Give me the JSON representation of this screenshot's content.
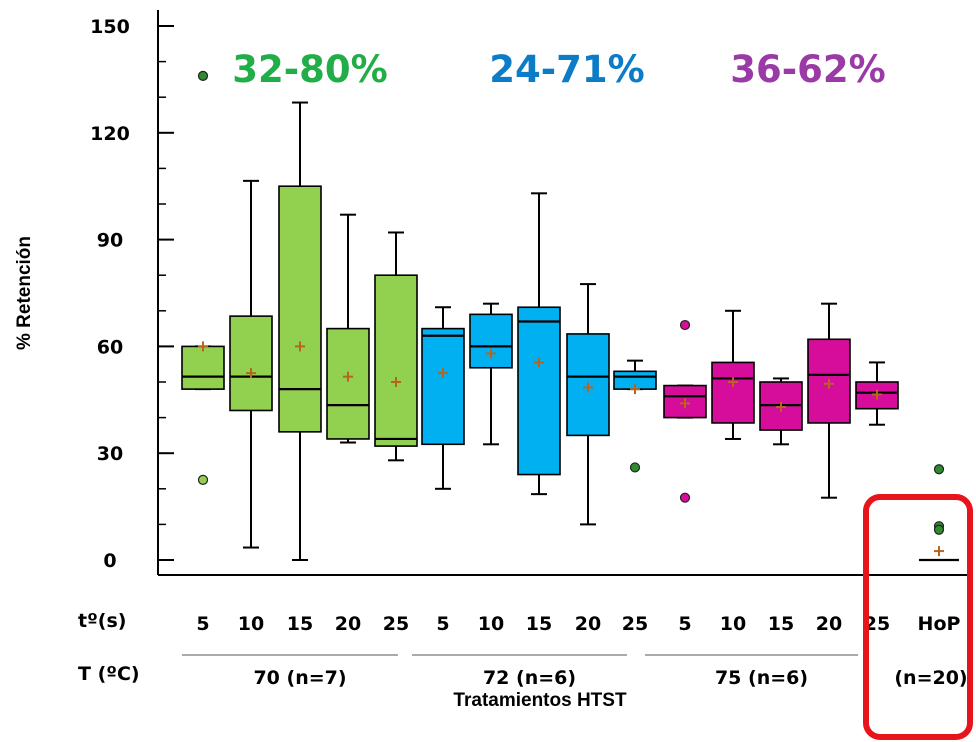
{
  "chart_data": {
    "type": "box",
    "ylabel": "% Retención",
    "xlabel": "Tratamientos HTST",
    "ylim": [
      0,
      150
    ],
    "yticks": [
      0,
      30,
      60,
      90,
      120,
      150
    ],
    "row_labels": {
      "time": "tº(s)",
      "temp": "T (ºC)"
    },
    "groups": [
      {
        "label": "70 (n=7)",
        "color": "#92d050",
        "range_label": "32-80%",
        "range_color": "#21ad47"
      },
      {
        "label": "72 (n=6)",
        "color": "#00b0f0",
        "range_label": "24-71%",
        "range_color": "#0b7cc7"
      },
      {
        "label": "75 (n=6)",
        "color": "#d60d9a",
        "range_label": "36-62%",
        "range_color": "#9a3aa6"
      }
    ],
    "boxes": [
      {
        "group": 0,
        "time": "5",
        "min": 48,
        "q1": 48,
        "median": 51.5,
        "q3": 60,
        "max": 60,
        "mean": 60,
        "outliers": [
          136,
          22.5
        ]
      },
      {
        "group": 0,
        "time": "10",
        "min": 3.5,
        "q1": 42,
        "median": 51.5,
        "q3": 68.5,
        "max": 106.5,
        "mean": 52.5,
        "outliers": []
      },
      {
        "group": 0,
        "time": "15",
        "min": 0,
        "q1": 36,
        "median": 48,
        "q3": 105,
        "max": 128.5,
        "mean": 60,
        "outliers": []
      },
      {
        "group": 0,
        "time": "20",
        "min": 33,
        "q1": 34,
        "median": 43.5,
        "q3": 65,
        "max": 97,
        "mean": 51.5,
        "outliers": []
      },
      {
        "group": 0,
        "time": "25",
        "min": 28,
        "q1": 32,
        "median": 34,
        "q3": 80,
        "max": 92,
        "mean": 50,
        "outliers": []
      },
      {
        "group": 1,
        "time": "5",
        "min": 20,
        "q1": 32.5,
        "median": 63,
        "q3": 65,
        "max": 71,
        "mean": 52.5,
        "outliers": []
      },
      {
        "group": 1,
        "time": "10",
        "min": 32.5,
        "q1": 54,
        "median": 60,
        "q3": 69,
        "max": 72,
        "mean": 58,
        "outliers": []
      },
      {
        "group": 1,
        "time": "15",
        "min": 18.5,
        "q1": 24,
        "median": 67,
        "q3": 71,
        "max": 103,
        "mean": 55.5,
        "outliers": []
      },
      {
        "group": 1,
        "time": "20",
        "min": 10,
        "q1": 35,
        "median": 51.5,
        "q3": 63.5,
        "max": 77.5,
        "mean": 48.5,
        "outliers": []
      },
      {
        "group": 1,
        "time": "25",
        "min": 48,
        "q1": 48,
        "median": 51.5,
        "q3": 53,
        "max": 56,
        "mean": 48,
        "outliers": [
          26
        ]
      },
      {
        "group": 2,
        "time": "5",
        "min": 40,
        "q1": 40,
        "median": 46,
        "q3": 49,
        "max": 49,
        "mean": 44,
        "outliers": [
          66,
          17.5
        ]
      },
      {
        "group": 2,
        "time": "10",
        "min": 34,
        "q1": 38.5,
        "median": 51,
        "q3": 55.5,
        "max": 70,
        "mean": 50,
        "outliers": []
      },
      {
        "group": 2,
        "time": "15",
        "min": 32.5,
        "q1": 36.5,
        "median": 43.5,
        "q3": 50,
        "max": 51,
        "mean": 43,
        "outliers": []
      },
      {
        "group": 2,
        "time": "20",
        "min": 17.5,
        "q1": 38.5,
        "median": 52,
        "q3": 62,
        "max": 72,
        "mean": 49.5,
        "outliers": []
      },
      {
        "group": 2,
        "time": "25",
        "min": 38,
        "q1": 42.5,
        "median": 47,
        "q3": 50,
        "max": 55.5,
        "mean": 46.5,
        "outliers": []
      },
      {
        "group": 3,
        "time": "HoP",
        "min": 0,
        "q1": 0,
        "median": 0,
        "q3": 0,
        "max": 0,
        "mean": 2.5,
        "outliers": [
          25.5,
          9.5,
          8.5
        ]
      }
    ],
    "hop": {
      "label": "HoP",
      "n_label": "(n=20)",
      "highlight_color": "#e8141c"
    },
    "mean_marker_color": "#b5651d",
    "outlier_color_default": "#2e8b2e"
  }
}
